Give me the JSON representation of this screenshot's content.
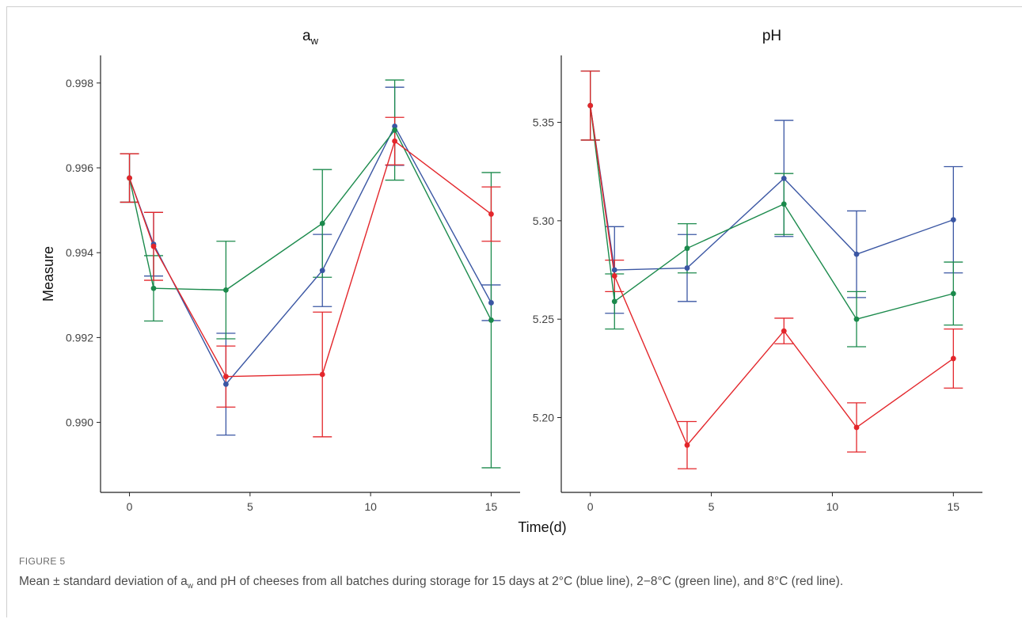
{
  "figure": {
    "label": "FIGURE 5",
    "caption_parts": [
      "Mean ± standard deviation of a",
      "w",
      " and pH of cheeses from all batches during storage for 15 days at 2°C (blue line), 2−8°C (green line), and 8°C (red line)."
    ]
  },
  "colors": {
    "blue": "#3a56a3",
    "green": "#1b8a4c",
    "red": "#e3262b"
  },
  "chart_data": {
    "type": "line",
    "xlabel": "Time(d)",
    "ylabel": "Measure",
    "panels": [
      {
        "title_main": "a",
        "title_sub": "w",
        "xlim": [
          -1.2,
          16.2
        ],
        "xticks": [
          0,
          5,
          10,
          15
        ],
        "ylim": [
          0.98835,
          0.99865
        ],
        "yticks": [
          0.99,
          0.992,
          0.994,
          0.996,
          0.998
        ],
        "ytick_labels": [
          "0.990",
          "0.992",
          "0.994",
          "0.996",
          "0.998"
        ],
        "series": [
          {
            "color": "blue",
            "x": [
              0,
              1,
              4,
              8,
              11,
              15
            ],
            "y": [
              0.99576,
              0.9942,
              0.9909,
              0.99358,
              0.99698,
              0.99282
            ],
            "err": [
              0.00057,
              0.00075,
              0.0012,
              0.00085,
              0.00092,
              0.00042
            ]
          },
          {
            "color": "green",
            "x": [
              0,
              1,
              4,
              8,
              11,
              15
            ],
            "y": [
              0.99576,
              0.99316,
              0.99312,
              0.99469,
              0.99689,
              0.99241
            ],
            "err": [
              0.00057,
              0.00077,
              0.00115,
              0.00127,
              0.00118,
              0.00348
            ]
          },
          {
            "color": "red",
            "x": [
              0,
              1,
              4,
              8,
              11,
              15
            ],
            "y": [
              0.99576,
              0.99415,
              0.99108,
              0.99113,
              0.99663,
              0.99491
            ],
            "err": [
              0.00057,
              0.0008,
              0.00072,
              0.00147,
              0.00056,
              0.00064
            ]
          }
        ]
      },
      {
        "title_main": "pH",
        "title_sub": "",
        "xlim": [
          -1.2,
          16.2
        ],
        "xticks": [
          0,
          5,
          10,
          15
        ],
        "ylim": [
          5.162,
          5.384
        ],
        "yticks": [
          5.2,
          5.25,
          5.3,
          5.35
        ],
        "ytick_labels": [
          "5.20",
          "5.25",
          "5.30",
          "5.35"
        ],
        "series": [
          {
            "color": "blue",
            "x": [
              0,
              1,
              4,
              8,
              11,
              15
            ],
            "y": [
              5.3585,
              5.275,
              5.276,
              5.3215,
              5.283,
              5.3005
            ],
            "err": [
              0.0175,
              0.022,
              0.017,
              0.0295,
              0.022,
              0.027
            ]
          },
          {
            "color": "green",
            "x": [
              0,
              1,
              4,
              8,
              11,
              15
            ],
            "y": [
              5.3585,
              5.259,
              5.286,
              5.3085,
              5.25,
              5.263
            ],
            "err": [
              0.0175,
              0.014,
              0.0125,
              0.0155,
              0.014,
              0.016
            ]
          },
          {
            "color": "red",
            "x": [
              0,
              1,
              4,
              8,
              11,
              15
            ],
            "y": [
              5.3585,
              5.272,
              5.186,
              5.244,
              5.195,
              5.23
            ],
            "err": [
              0.0175,
              0.008,
              0.012,
              0.0065,
              0.0125,
              0.015
            ]
          }
        ]
      }
    ]
  }
}
